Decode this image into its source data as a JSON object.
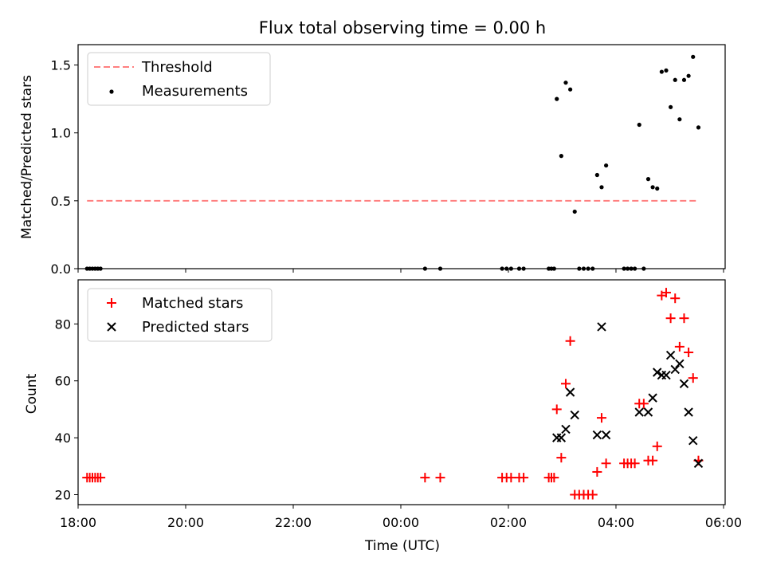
{
  "chart_data": [
    {
      "type": "scatter",
      "title": "Flux total observing time = 0.00 h",
      "xlabel": "",
      "ylabel": "Matched/Predicted stars",
      "x_unit": "time of day (UTC), hours; values after midnight are next day",
      "xlim": [
        "18:00",
        "06:00"
      ],
      "ylim": [
        0,
        1.65
      ],
      "yticks": [
        "0.0",
        "0.5",
        "1.0",
        "1.5"
      ],
      "legend_position": "top-left",
      "legend": [
        "Threshold",
        "Measurements"
      ],
      "threshold": {
        "name": "Threshold",
        "y": 0.5,
        "x_start": "18:10",
        "x_end": "05:32",
        "color": "#ff8080",
        "style": "dashed"
      },
      "series": [
        {
          "name": "Measurements",
          "color": "#000000",
          "marker": "dot",
          "points": [
            [
              "18:10",
              0
            ],
            [
              "18:13",
              0
            ],
            [
              "18:16",
              0
            ],
            [
              "18:19",
              0
            ],
            [
              "18:22",
              0
            ],
            [
              "18:25",
              0
            ],
            [
              "00:27",
              0
            ],
            [
              "00:44",
              0
            ],
            [
              "01:53",
              0
            ],
            [
              "01:58",
              0
            ],
            [
              "02:03",
              0
            ],
            [
              "02:12",
              0
            ],
            [
              "02:17",
              0
            ],
            [
              "02:45",
              0
            ],
            [
              "02:48",
              0
            ],
            [
              "02:51",
              0
            ],
            [
              "02:54",
              1.25
            ],
            [
              "02:59",
              0.83
            ],
            [
              "03:04",
              1.37
            ],
            [
              "03:09",
              1.32
            ],
            [
              "03:14",
              0.42
            ],
            [
              "03:19",
              0
            ],
            [
              "03:24",
              0
            ],
            [
              "03:29",
              0
            ],
            [
              "03:34",
              0
            ],
            [
              "03:39",
              0.69
            ],
            [
              "03:44",
              0.6
            ],
            [
              "03:49",
              0.76
            ],
            [
              "04:09",
              0
            ],
            [
              "04:13",
              0
            ],
            [
              "04:17",
              0
            ],
            [
              "04:21",
              0
            ],
            [
              "04:26",
              1.06
            ],
            [
              "04:31",
              0
            ],
            [
              "04:36",
              0.66
            ],
            [
              "04:41",
              0.6
            ],
            [
              "04:46",
              0.59
            ],
            [
              "04:51",
              1.45
            ],
            [
              "04:56",
              1.46
            ],
            [
              "05:01",
              1.19
            ],
            [
              "05:06",
              1.39
            ],
            [
              "05:11",
              1.1
            ],
            [
              "05:16",
              1.39
            ],
            [
              "05:21",
              1.42
            ],
            [
              "05:26",
              1.56
            ],
            [
              "05:32",
              1.04
            ]
          ]
        }
      ]
    },
    {
      "type": "scatter",
      "title": "",
      "xlabel": "Time (UTC)",
      "ylabel": "Count",
      "x_unit": "time of day (UTC), hours; values after midnight are next day",
      "xlim": [
        "18:00",
        "06:00"
      ],
      "ylim": [
        16.5,
        95.5
      ],
      "xticks": [
        "18:00",
        "20:00",
        "22:00",
        "00:00",
        "02:00",
        "04:00",
        "06:00"
      ],
      "yticks": [
        "20",
        "40",
        "60",
        "80"
      ],
      "legend_position": "top-left",
      "legend": [
        "Matched stars",
        "Predicted stars"
      ],
      "series": [
        {
          "name": "Matched stars",
          "color": "#ff0000",
          "marker": "plus",
          "points": [
            [
              "18:10",
              26
            ],
            [
              "18:13",
              26
            ],
            [
              "18:16",
              26
            ],
            [
              "18:19",
              26
            ],
            [
              "18:22",
              26
            ],
            [
              "18:25",
              26
            ],
            [
              "00:27",
              26
            ],
            [
              "00:44",
              26
            ],
            [
              "01:53",
              26
            ],
            [
              "01:58",
              26
            ],
            [
              "02:03",
              26
            ],
            [
              "02:12",
              26
            ],
            [
              "02:17",
              26
            ],
            [
              "02:45",
              26
            ],
            [
              "02:48",
              26
            ],
            [
              "02:51",
              26
            ],
            [
              "02:54",
              50
            ],
            [
              "02:59",
              33
            ],
            [
              "03:04",
              59
            ],
            [
              "03:09",
              74
            ],
            [
              "03:14",
              20
            ],
            [
              "03:19",
              20
            ],
            [
              "03:24",
              20
            ],
            [
              "03:29",
              20
            ],
            [
              "03:34",
              20
            ],
            [
              "03:39",
              28
            ],
            [
              "03:44",
              47
            ],
            [
              "03:49",
              31
            ],
            [
              "04:09",
              31
            ],
            [
              "04:13",
              31
            ],
            [
              "04:17",
              31
            ],
            [
              "04:21",
              31
            ],
            [
              "04:26",
              52
            ],
            [
              "04:31",
              52
            ],
            [
              "04:36",
              32
            ],
            [
              "04:41",
              32
            ],
            [
              "04:46",
              37
            ],
            [
              "04:51",
              90
            ],
            [
              "04:56",
              91
            ],
            [
              "05:01",
              82
            ],
            [
              "05:06",
              89
            ],
            [
              "05:11",
              72
            ],
            [
              "05:16",
              82
            ],
            [
              "05:21",
              70
            ],
            [
              "05:26",
              61
            ],
            [
              "05:32",
              32
            ]
          ]
        },
        {
          "name": "Predicted stars",
          "color": "#000000",
          "marker": "x",
          "points": [
            [
              "02:54",
              40
            ],
            [
              "02:59",
              40
            ],
            [
              "03:04",
              43
            ],
            [
              "03:09",
              56
            ],
            [
              "03:14",
              48
            ],
            [
              "03:39",
              41
            ],
            [
              "03:44",
              79
            ],
            [
              "03:49",
              41
            ],
            [
              "04:26",
              49
            ],
            [
              "04:36",
              49
            ],
            [
              "04:41",
              54
            ],
            [
              "04:46",
              63
            ],
            [
              "04:51",
              62
            ],
            [
              "04:56",
              62
            ],
            [
              "05:01",
              69
            ],
            [
              "05:06",
              64
            ],
            [
              "05:11",
              66
            ],
            [
              "05:16",
              59
            ],
            [
              "05:21",
              49
            ],
            [
              "05:26",
              39
            ],
            [
              "05:32",
              31
            ]
          ]
        }
      ]
    }
  ]
}
